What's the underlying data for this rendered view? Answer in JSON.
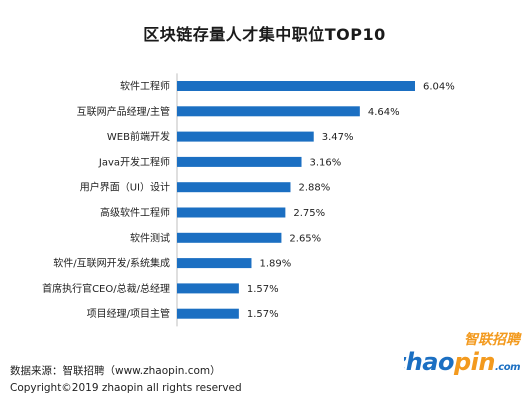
{
  "chart_data": {
    "type": "bar",
    "orientation": "horizontal",
    "title": "区块链存量人才集中职位TOP10",
    "categories": [
      "软件工程师",
      "互联网产品经理/主管",
      "WEB前端开发",
      "Java开发工程师",
      "用户界面（UI）设计",
      "高级软件工程师",
      "软件测试",
      "软件/互联网开发/系统集成",
      "首席执行官CEO/总裁/总经理",
      "项目经理/项目主管"
    ],
    "values": [
      6.04,
      4.64,
      3.47,
      3.16,
      2.88,
      2.75,
      2.65,
      1.89,
      1.57,
      1.57
    ],
    "value_labels": [
      "6.04%",
      "4.64%",
      "3.47%",
      "3.16%",
      "2.88%",
      "2.75%",
      "2.65%",
      "1.89%",
      "1.57%",
      "1.57%"
    ],
    "unit": "%",
    "bar_color": "#1b6fc2",
    "grid": false,
    "legend": "none"
  },
  "footer": {
    "source": "数据来源：智联招聘（www.zhaopin.com）",
    "copyright": "Copyright©2019 zhaopin all rights reserved"
  },
  "logo": {
    "cn_text": "智联招聘",
    "en_text": "zhaopin.com",
    "color_blue": "#1b6fc2",
    "color_orange": "#f39a1e"
  }
}
